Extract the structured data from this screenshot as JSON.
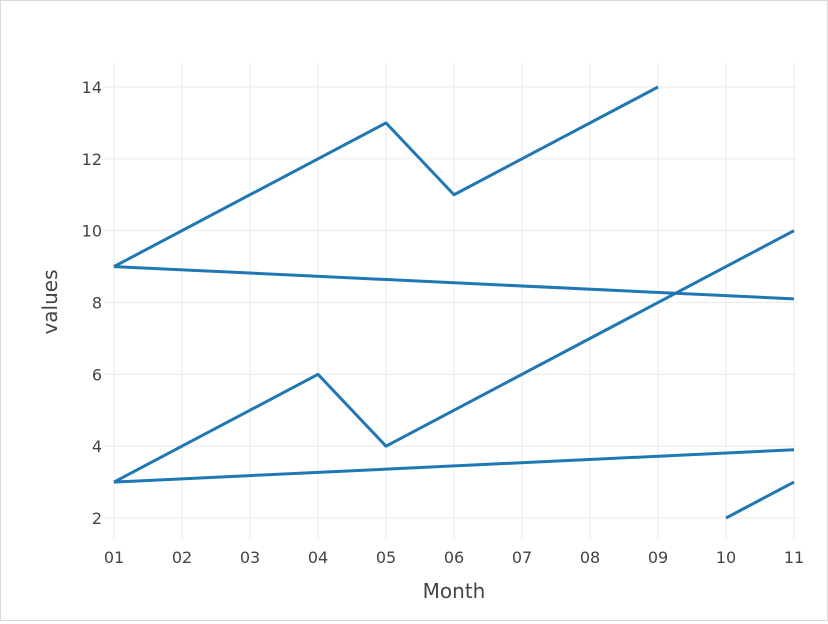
{
  "chart_data": {
    "type": "line",
    "title": "",
    "xlabel": "Month",
    "ylabel": "values",
    "x_categories": [
      "01",
      "02",
      "03",
      "04",
      "05",
      "06",
      "07",
      "08",
      "09",
      "10",
      "11"
    ],
    "y_ticks": [
      2,
      4,
      6,
      8,
      10,
      12,
      14
    ],
    "ylim": [
      1.3,
      14.9
    ],
    "grid": true,
    "legend": "none",
    "colors": {
      "line": "#1f77b4"
    },
    "series": [
      {
        "x": [
          "01",
          "05",
          "06",
          "09"
        ],
        "values": [
          9,
          13,
          11,
          14
        ]
      },
      {
        "x": [
          "01",
          "11"
        ],
        "values": [
          9,
          8.1
        ]
      },
      {
        "x": [
          "01",
          "04",
          "05",
          "11"
        ],
        "values": [
          3,
          6,
          4,
          10
        ]
      },
      {
        "x": [
          "01",
          "11"
        ],
        "values": [
          3,
          3.9
        ]
      },
      {
        "x": [
          "10",
          "11"
        ],
        "values": [
          2,
          3
        ]
      }
    ]
  }
}
